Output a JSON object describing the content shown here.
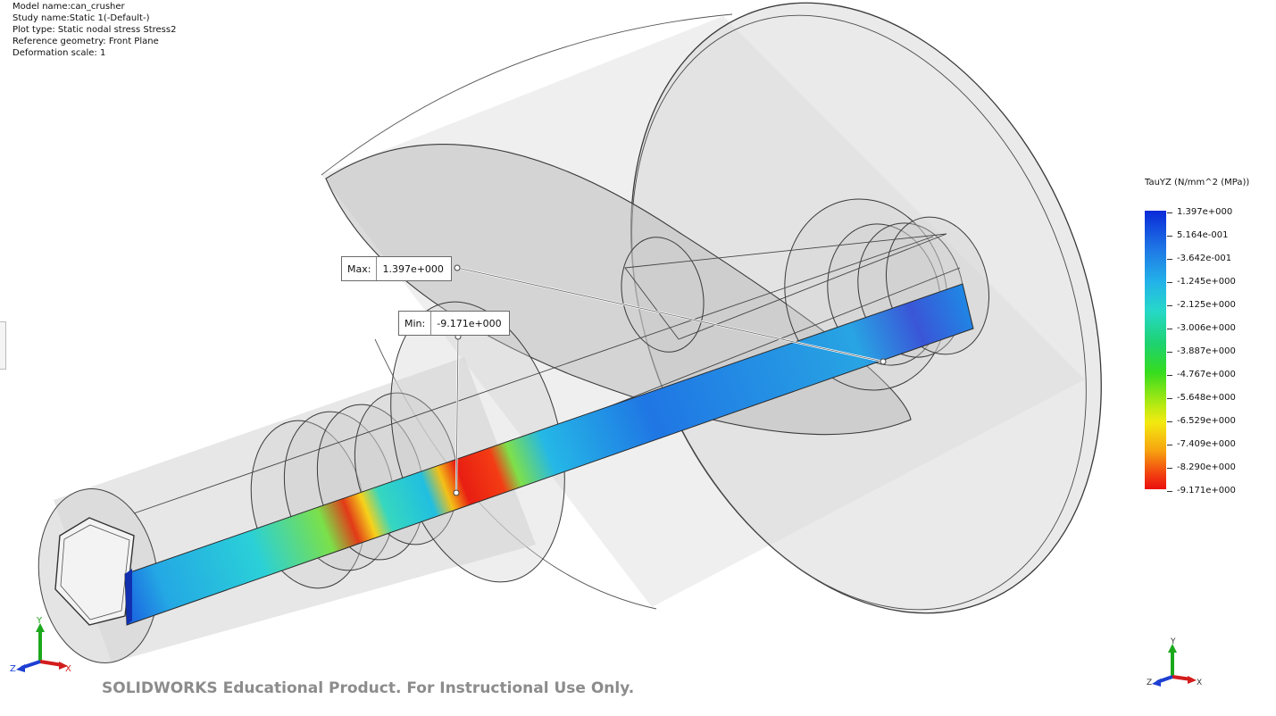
{
  "info": {
    "model": "Model name:can_crusher",
    "study": "Study name:Static 1(-Default-)",
    "plot": "Plot type: Static nodal stress Stress2",
    "geometry": "Reference geometry: Front Plane",
    "deformation": "Deformation scale: 1"
  },
  "callouts": {
    "max": {
      "label": "Max:",
      "value": "1.397e+000"
    },
    "min": {
      "label": "Min:",
      "value": "-9.171e+000"
    }
  },
  "legend": {
    "title": "TauYZ (N/mm^2 (MPa))",
    "ticks": [
      "1.397e+000",
      "5.164e-001",
      "-3.642e-001",
      "-1.245e+000",
      "-2.125e+000",
      "-3.006e+000",
      "-3.887e+000",
      "-4.767e+000",
      "-5.648e+000",
      "-6.529e+000",
      "-7.409e+000",
      "-8.290e+000",
      "-9.171e+000"
    ]
  },
  "triad": {
    "x": "X",
    "y": "Y",
    "z": "Z"
  },
  "watermark": "SOLIDWORKS Educational Product. For Instructional Use Only.",
  "colors": {
    "max_blue": "#0a2ad8",
    "min_red": "#ea0f0f",
    "model_gray": "#d8d8d8"
  }
}
